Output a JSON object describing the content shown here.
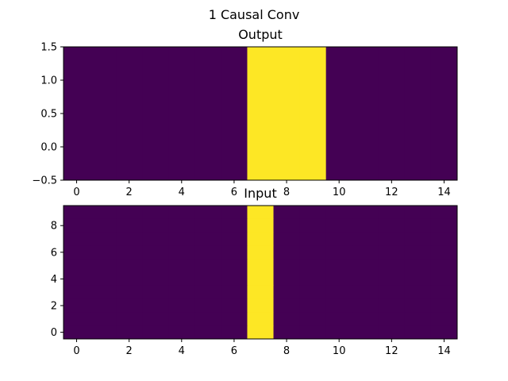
{
  "figure": {
    "suptitle": "1 Causal Conv"
  },
  "chart_data": [
    {
      "type": "heatmap",
      "title": "Output",
      "xlabel": "",
      "ylabel": "",
      "xlim": [
        -0.5,
        14.5
      ],
      "ylim": [
        -0.5,
        1.5
      ],
      "x_ticks": [
        0,
        2,
        4,
        6,
        8,
        10,
        12,
        14
      ],
      "x_tick_labels": [
        "0",
        "2",
        "4",
        "6",
        "8",
        "10",
        "12",
        "14"
      ],
      "y_ticks": [
        -0.5,
        0.0,
        0.5,
        1.0,
        1.5
      ],
      "y_tick_labels": [
        "−0.5",
        "0.0",
        "0.5",
        "1.0",
        "1.5"
      ],
      "rows": 1,
      "cols": 15,
      "values": [
        [
          0,
          0,
          0,
          0,
          0,
          0,
          0,
          1,
          1,
          1,
          0,
          0,
          0,
          0,
          0
        ]
      ],
      "colormap": {
        "low": "#440154",
        "high": "#fde725"
      }
    },
    {
      "type": "heatmap",
      "title": "Input",
      "xlabel": "",
      "ylabel": "",
      "xlim": [
        -0.5,
        14.5
      ],
      "ylim": [
        -0.5,
        9.5
      ],
      "x_ticks": [
        0,
        2,
        4,
        6,
        8,
        10,
        12,
        14
      ],
      "x_tick_labels": [
        "0",
        "2",
        "4",
        "6",
        "8",
        "10",
        "12",
        "14"
      ],
      "y_ticks": [
        0,
        2,
        4,
        6,
        8
      ],
      "y_tick_labels": [
        "0",
        "2",
        "4",
        "6",
        "8"
      ],
      "rows": 10,
      "cols": 15,
      "values": [
        [
          0,
          0,
          0,
          0,
          0,
          0,
          0,
          1,
          0,
          0,
          0,
          0,
          0,
          0,
          0
        ],
        [
          0,
          0,
          0,
          0,
          0,
          0,
          0,
          1,
          0,
          0,
          0,
          0,
          0,
          0,
          0
        ],
        [
          0,
          0,
          0,
          0,
          0,
          0,
          0,
          1,
          0,
          0,
          0,
          0,
          0,
          0,
          0
        ],
        [
          0,
          0,
          0,
          0,
          0,
          0,
          0,
          1,
          0,
          0,
          0,
          0,
          0,
          0,
          0
        ],
        [
          0,
          0,
          0,
          0,
          0,
          0,
          0,
          1,
          0,
          0,
          0,
          0,
          0,
          0,
          0
        ],
        [
          0,
          0,
          0,
          0,
          0,
          0,
          0,
          1,
          0,
          0,
          0,
          0,
          0,
          0,
          0
        ],
        [
          0,
          0,
          0,
          0,
          0,
          0,
          0,
          1,
          0,
          0,
          0,
          0,
          0,
          0,
          0
        ],
        [
          0,
          0,
          0,
          0,
          0,
          0,
          0,
          1,
          0,
          0,
          0,
          0,
          0,
          0,
          0
        ],
        [
          0,
          0,
          0,
          0,
          0,
          0,
          0,
          1,
          0,
          0,
          0,
          0,
          0,
          0,
          0
        ],
        [
          0,
          0,
          0,
          0,
          0,
          0,
          0,
          1,
          0,
          0,
          0,
          0,
          0,
          0,
          0
        ]
      ],
      "colormap": {
        "low": "#440154",
        "high": "#fde725"
      }
    }
  ]
}
